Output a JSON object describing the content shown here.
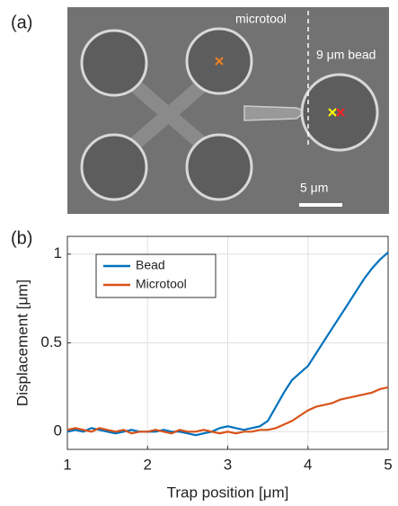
{
  "panel_a": {
    "label": "(a)",
    "microtool_label": "microtool",
    "bead_label": "9 μm bead",
    "scale_label": "5 μm"
  },
  "chart_data": {
    "type": "line",
    "panel_label": "(b)",
    "x_label": "Trap position [μm]",
    "y_label": "Displacement [μm]",
    "x": [
      1,
      1.1,
      1.2,
      1.3,
      1.4,
      1.5,
      1.6,
      1.7,
      1.8,
      1.9,
      2,
      2.1,
      2.2,
      2.3,
      2.4,
      2.5,
      2.6,
      2.7,
      2.8,
      2.9,
      3,
      3.1,
      3.2,
      3.3,
      3.4,
      3.5,
      3.6,
      3.7,
      3.8,
      3.9,
      4,
      4.1,
      4.2,
      4.3,
      4.4,
      4.5,
      4.6,
      4.7,
      4.8,
      4.9,
      5
    ],
    "series": [
      {
        "name": "Bead",
        "color": "#0072bd",
        "values": [
          0,
          0.01,
          0,
          0.02,
          0.01,
          0,
          -0.01,
          0,
          0.01,
          0,
          0,
          0,
          0.01,
          0,
          0,
          -0.01,
          -0.02,
          -0.01,
          0,
          0.02,
          0.03,
          0.02,
          0.01,
          0.02,
          0.03,
          0.06,
          0.14,
          0.22,
          0.29,
          0.33,
          0.37,
          0.44,
          0.51,
          0.58,
          0.65,
          0.72,
          0.79,
          0.86,
          0.92,
          0.97,
          1.01
        ]
      },
      {
        "name": "Microtool",
        "color": "#d95319",
        "values": [
          0.01,
          0.02,
          0.01,
          0,
          0.02,
          0.01,
          0,
          0.01,
          -0.01,
          0,
          0,
          0.01,
          0,
          -0.01,
          0.01,
          0,
          0,
          0.01,
          0,
          -0.01,
          0,
          -0.01,
          0,
          0,
          0.01,
          0.01,
          0.02,
          0.04,
          0.06,
          0.09,
          0.12,
          0.14,
          0.15,
          0.16,
          0.18,
          0.19,
          0.2,
          0.21,
          0.22,
          0.24,
          0.25
        ]
      }
    ],
    "xlim": [
      1,
      5
    ],
    "ylim": [
      -0.1,
      1.1
    ],
    "xticks": [
      1,
      2,
      3,
      4,
      5
    ],
    "yticks": [
      0,
      0.5,
      1
    ],
    "grid": true,
    "legend": "upper-left"
  }
}
